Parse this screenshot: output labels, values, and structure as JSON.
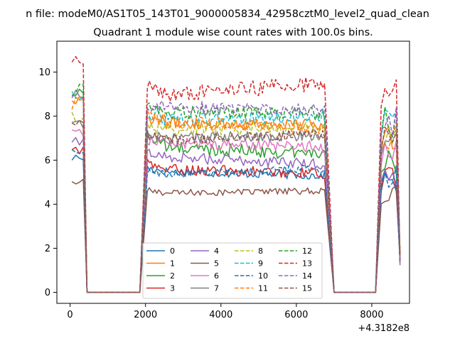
{
  "chart_data": {
    "type": "line",
    "suptitle": "n file: modeM0/AS1T05_143T01_9000005834_42958cztM0_level2_quad_clean",
    "title": "Quadrant 1 module wise count rates with 100.0s bins.",
    "xlabel": "",
    "ylabel": "",
    "x_offset_label": "+4.3182e8",
    "xlim": [
      -350,
      9000
    ],
    "ylim": [
      -0.5,
      11.4
    ],
    "x_ticks": [
      0,
      2000,
      4000,
      6000,
      8000
    ],
    "x_tick_labels": [
      "0",
      "2000",
      "4000",
      "6000",
      "8000"
    ],
    "y_ticks": [
      0,
      2,
      4,
      6,
      8,
      10
    ],
    "y_tick_labels": [
      "0",
      "2",
      "4",
      "6",
      "8",
      "10"
    ],
    "grid": false,
    "legend_position": "lower-center",
    "segments": [
      {
        "start": 50,
        "end": 350
      },
      {
        "start": 2050,
        "end": 6750
      },
      {
        "start": 8250,
        "end": 8650
      }
    ],
    "gap_ends": [
      [
        450,
        1850
      ],
      [
        7000,
        8150
      ]
    ],
    "series": [
      {
        "name": "0",
        "color": "#1f77b4",
        "style": "solid",
        "levels": [
          6.1,
          5.5,
          5.3
        ],
        "noise": 0.2
      },
      {
        "name": "1",
        "color": "#ff7f0e",
        "style": "solid",
        "levels": [
          8.8,
          7.7,
          7.6
        ],
        "noise": 0.3
      },
      {
        "name": "2",
        "color": "#2ca02c",
        "style": "solid",
        "levels": [
          9.0,
          6.6,
          6.3
        ],
        "noise": 0.3
      },
      {
        "name": "3",
        "color": "#d62728",
        "style": "solid",
        "levels": [
          6.5,
          5.6,
          5.4
        ],
        "noise": 0.25
      },
      {
        "name": "4",
        "color": "#9467bd",
        "style": "solid",
        "levels": [
          6.8,
          6.2,
          5.8
        ],
        "noise": 0.25
      },
      {
        "name": "5",
        "color": "#8c564b",
        "style": "solid",
        "levels": [
          5.0,
          4.5,
          4.6
        ],
        "noise": 0.15
      },
      {
        "name": "6",
        "color": "#e377c2",
        "style": "solid",
        "levels": [
          7.3,
          6.8,
          6.6
        ],
        "noise": 0.25
      },
      {
        "name": "7",
        "color": "#7f7f7f",
        "style": "solid",
        "levels": [
          7.6,
          7.0,
          7.1
        ],
        "noise": 0.25
      },
      {
        "name": "8",
        "color": "#bcbd22",
        "style": "dashed",
        "levels": [
          8.0,
          7.4,
          7.5
        ],
        "noise": 0.3
      },
      {
        "name": "9",
        "color": "#17becf",
        "style": "dashed",
        "levels": [
          8.9,
          7.8,
          8.0
        ],
        "noise": 0.3
      },
      {
        "name": "10",
        "color": "#1f77b4",
        "style": "dashed",
        "levels": [
          6.3,
          5.3,
          5.6
        ],
        "noise": 0.2
      },
      {
        "name": "11",
        "color": "#ff7f0e",
        "style": "dashed",
        "levels": [
          8.6,
          7.8,
          7.4
        ],
        "noise": 0.3
      },
      {
        "name": "12",
        "color": "#2ca02c",
        "style": "dashed",
        "levels": [
          9.2,
          8.2,
          8.1
        ],
        "noise": 0.3
      },
      {
        "name": "13",
        "color": "#d62728",
        "style": "dashed",
        "levels": [
          10.7,
          8.9,
          9.5
        ],
        "noise": 0.35
      },
      {
        "name": "14",
        "color": "#9467bd",
        "style": "dashed",
        "levels": [
          9.0,
          8.4,
          8.3
        ],
        "noise": 0.3
      },
      {
        "name": "15",
        "color": "#8c564b",
        "style": "dashed",
        "levels": [
          7.8,
          6.9,
          7.2
        ],
        "noise": 0.25
      }
    ]
  }
}
